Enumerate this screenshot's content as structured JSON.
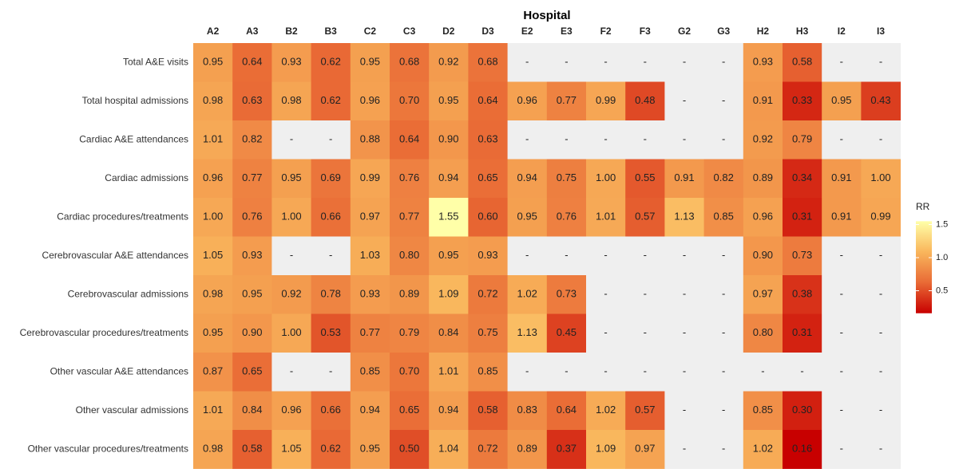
{
  "chart_data": {
    "type": "heatmap",
    "x_title": "Hospital",
    "columns": [
      "A2",
      "A3",
      "B2",
      "B3",
      "C2",
      "C3",
      "D2",
      "D3",
      "E2",
      "E3",
      "F2",
      "F3",
      "G2",
      "G3",
      "H2",
      "H3",
      "I2",
      "I3"
    ],
    "rows": [
      "Total A&E visits",
      "Total hospital admissions",
      "Cardiac A&E attendances",
      "Cardiac admissions",
      "Cardiac procedures/treatments",
      "Cerebrovascular A&E attendances",
      "Cerebrovascular admissions",
      "Cerebrovascular procedures/treatments",
      "Other vascular A&E attendances",
      "Other vascular admissions",
      "Other vascular procedures/treatments"
    ],
    "values": [
      [
        0.95,
        0.64,
        0.93,
        0.62,
        0.95,
        0.68,
        0.92,
        0.68,
        null,
        null,
        null,
        null,
        null,
        null,
        0.93,
        0.58,
        null,
        null
      ],
      [
        0.98,
        0.63,
        0.98,
        0.62,
        0.96,
        0.7,
        0.95,
        0.64,
        0.96,
        0.77,
        0.99,
        0.48,
        null,
        null,
        0.91,
        0.33,
        0.95,
        0.43
      ],
      [
        1.01,
        0.82,
        null,
        null,
        0.88,
        0.64,
        0.9,
        0.63,
        null,
        null,
        null,
        null,
        null,
        null,
        0.92,
        0.79,
        null,
        null
      ],
      [
        0.96,
        0.77,
        0.95,
        0.69,
        0.99,
        0.76,
        0.94,
        0.65,
        0.94,
        0.75,
        1.0,
        0.55,
        0.91,
        0.82,
        0.89,
        0.34,
        0.91,
        1.0
      ],
      [
        1.0,
        0.76,
        1.0,
        0.66,
        0.97,
        0.77,
        1.55,
        0.6,
        0.95,
        0.76,
        1.01,
        0.57,
        1.13,
        0.85,
        0.96,
        0.31,
        0.91,
        0.99
      ],
      [
        1.05,
        0.93,
        null,
        null,
        1.03,
        0.8,
        0.95,
        0.93,
        null,
        null,
        null,
        null,
        null,
        null,
        0.9,
        0.73,
        null,
        null
      ],
      [
        0.98,
        0.95,
        0.92,
        0.78,
        0.93,
        0.89,
        1.09,
        0.72,
        1.02,
        0.73,
        null,
        null,
        null,
        null,
        0.97,
        0.38,
        null,
        null
      ],
      [
        0.95,
        0.9,
        1.0,
        0.53,
        0.77,
        0.79,
        0.84,
        0.75,
        1.13,
        0.45,
        null,
        null,
        null,
        null,
        0.8,
        0.31,
        null,
        null
      ],
      [
        0.87,
        0.65,
        null,
        null,
        0.85,
        0.7,
        1.01,
        0.85,
        null,
        null,
        null,
        null,
        null,
        null,
        null,
        null,
        null,
        null
      ],
      [
        1.01,
        0.84,
        0.96,
        0.66,
        0.94,
        0.65,
        0.94,
        0.58,
        0.83,
        0.64,
        1.02,
        0.57,
        null,
        null,
        0.85,
        0.3,
        null,
        null
      ],
      [
        0.98,
        0.58,
        1.05,
        0.62,
        0.95,
        0.5,
        1.04,
        0.72,
        0.89,
        0.37,
        1.09,
        0.97,
        null,
        null,
        1.02,
        0.16,
        null,
        null
      ]
    ],
    "value_labels": [
      [
        "0.95",
        "0.64",
        "0.93",
        "0.62",
        "0.95",
        "0.68",
        "0.92",
        "0.68",
        "-",
        "-",
        "-",
        "-",
        "-",
        "-",
        "0.93",
        "0.58",
        "-",
        "-"
      ],
      [
        "0.98",
        "0.63",
        "0.98",
        "0.62",
        "0.96",
        "0.70",
        "0.95",
        "0.64",
        "0.96",
        "0.77",
        "0.99",
        "0.48",
        "-",
        "-",
        "0.91",
        "0.33",
        "0.95",
        "0.43"
      ],
      [
        "1.01",
        "0.82",
        "-",
        "-",
        "0.88",
        "0.64",
        "0.90",
        "0.63",
        "-",
        "-",
        "-",
        "-",
        "-",
        "-",
        "0.92",
        "0.79",
        "-",
        "-"
      ],
      [
        "0.96",
        "0.77",
        "0.95",
        "0.69",
        "0.99",
        "0.76",
        "0.94",
        "0.65",
        "0.94",
        "0.75",
        "1.00",
        "0.55",
        "0.91",
        "0.82",
        "0.89",
        "0.34",
        "0.91",
        "1.00"
      ],
      [
        "1.00",
        "0.76",
        "1.00",
        "0.66",
        "0.97",
        "0.77",
        "1.55",
        "0.60",
        "0.95",
        "0.76",
        "1.01",
        "0.57",
        "1.13",
        "0.85",
        "0.96",
        "0.31",
        "0.91",
        "0.99"
      ],
      [
        "1.05",
        "0.93",
        "-",
        "-",
        "1.03",
        "0.80",
        "0.95",
        "0.93",
        "-",
        "-",
        "-",
        "-",
        "-",
        "-",
        "0.90",
        "0.73",
        "-",
        "-"
      ],
      [
        "0.98",
        "0.95",
        "0.92",
        "0.78",
        "0.93",
        "0.89",
        "1.09",
        "0.72",
        "1.02",
        "0.73",
        "-",
        "-",
        "-",
        "-",
        "0.97",
        "0.38",
        "-",
        "-"
      ],
      [
        "0.95",
        "0.90",
        "1.00",
        "0.53",
        "0.77",
        "0.79",
        "0.84",
        "0.75",
        "1.13",
        "0.45",
        "-",
        "-",
        "-",
        "-",
        "0.80",
        "0.31",
        "-",
        "-"
      ],
      [
        "0.87",
        "0.65",
        "-",
        "-",
        "0.85",
        "0.70",
        "1.01",
        "0.85",
        "-",
        "-",
        "-",
        "-",
        "-",
        "-",
        "-",
        "-",
        "-",
        "-"
      ],
      [
        "1.01",
        "0.84",
        "0.96",
        "0.66",
        "0.94",
        "0.65",
        "0.94",
        "0.58",
        "0.83",
        "0.64",
        "1.02",
        "0.57",
        "-",
        "-",
        "0.85",
        "0.30",
        "-",
        "-"
      ],
      [
        "0.98",
        "0.58",
        "1.05",
        "0.62",
        "0.95",
        "0.50",
        "1.04",
        "0.72",
        "0.89",
        "0.37",
        "1.09",
        "0.97",
        "-",
        "-",
        "1.02",
        "0.16",
        "-",
        "-"
      ]
    ],
    "missing_color": "#efefef",
    "colorbar_title": "RR",
    "clim": [
      0.16,
      1.55
    ],
    "colorbar_ticks": [
      1.5,
      {
        "value": 1,
        "label": "1.0"
      },
      0.5
    ],
    "colorscale": [
      "#c80000",
      "#e96a35",
      "#f9b65c",
      "#ffffa8"
    ]
  }
}
